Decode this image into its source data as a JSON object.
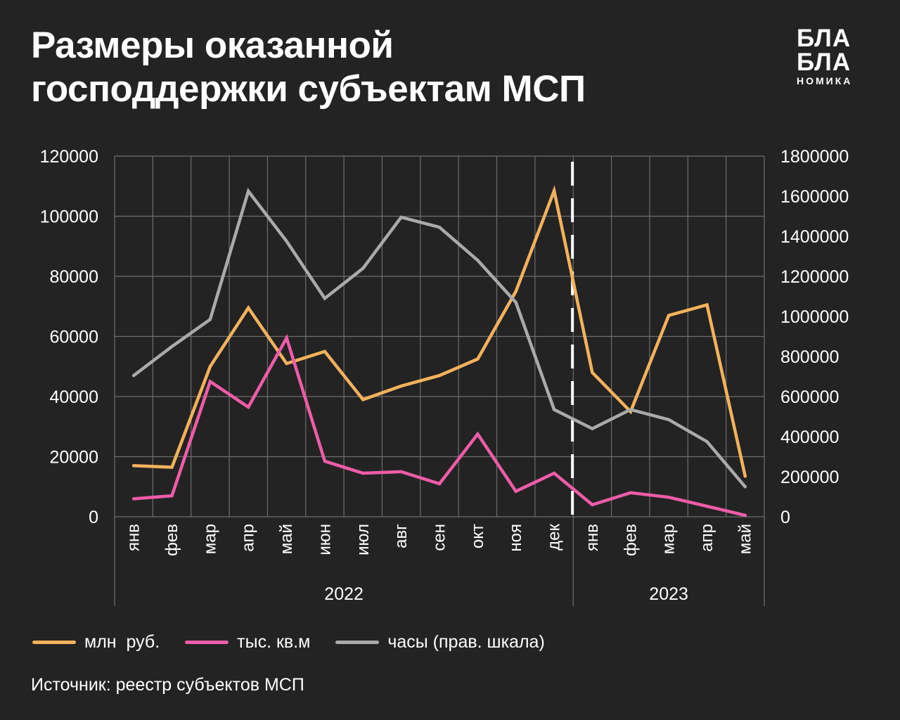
{
  "title": {
    "line1": "Размеры оказанной",
    "line2": "господдержки субъектам МСП"
  },
  "logo": {
    "line1": "БЛА",
    "line2": "БЛА",
    "line3": "НОМИКА"
  },
  "legend": [
    {
      "label": "млн  руб.",
      "color": "#f4b25b"
    },
    {
      "label": "тыс. кв.м",
      "color": "#ef5ca8"
    },
    {
      "label": "часы (прав. шкала)",
      "color": "#aaaaaa"
    }
  ],
  "source": "Источник: реестр субъектов МСП",
  "chart_data": {
    "type": "line",
    "categories": [
      "янв",
      "фев",
      "мар",
      "апр",
      "май",
      "июн",
      "июл",
      "авг",
      "сен",
      "окт",
      "ноя",
      "дек",
      "янв",
      "фев",
      "мар",
      "апр",
      "май"
    ],
    "year_groups": [
      {
        "label": "2022",
        "count": 12
      },
      {
        "label": "2023",
        "count": 5
      }
    ],
    "ylim": [
      0,
      120000
    ],
    "y_ticks": [
      0,
      20000,
      40000,
      60000,
      80000,
      100000,
      120000
    ],
    "y2lim": [
      0,
      1800000
    ],
    "y2_ticks": [
      0,
      200000,
      400000,
      600000,
      800000,
      1000000,
      1200000,
      1400000,
      1600000,
      1800000
    ],
    "grid": true,
    "legend_position": "bottom",
    "divider_after_category": 12,
    "series": [
      {
        "name": "млн  руб.",
        "axis": "left",
        "color": "#f4b25b",
        "values": [
          17000,
          16500,
          50000,
          69500,
          51000,
          55000,
          39000,
          43500,
          47000,
          52500,
          75000,
          108500,
          48000,
          35000,
          67000,
          70500,
          13500
        ]
      },
      {
        "name": "тыс. кв.м",
        "axis": "left",
        "color": "#ef5ca8",
        "values": [
          6000,
          7000,
          45000,
          36500,
          59500,
          18500,
          14500,
          15000,
          11000,
          27500,
          8500,
          14500,
          4000,
          8000,
          6500,
          3500,
          500
        ]
      },
      {
        "name": "часы (прав. шкала)",
        "axis": "right",
        "color": "#aaaaaa",
        "values": [
          705000,
          850000,
          985000,
          1625000,
          1375000,
          1090000,
          1240000,
          1495000,
          1445000,
          1280000,
          1070000,
          535000,
          440000,
          535000,
          485000,
          375000,
          150000
        ]
      }
    ]
  }
}
